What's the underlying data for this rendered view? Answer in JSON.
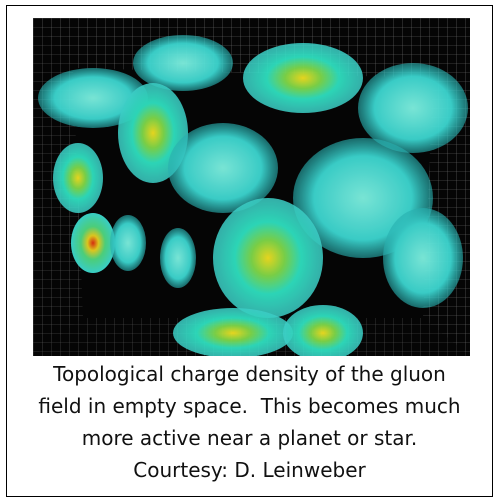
{
  "figure": {
    "caption": [
      "Topological charge density of the gluon",
      "field in empty space.  This becomes much",
      "more active near a planet or star.",
      "Courtesy: D. Leinweber"
    ]
  }
}
